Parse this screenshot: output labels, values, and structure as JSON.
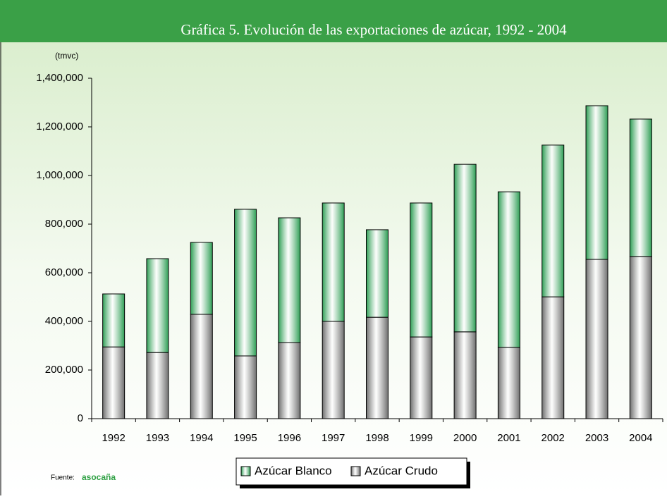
{
  "chart_data": {
    "type": "stacked_bar",
    "title": "Gráfica 5. Evolución de las exportaciones de azúcar, 1992 - 2004",
    "y_label": "(tmvc)",
    "source_label": "Fuente:",
    "source": "asocaña",
    "categories": [
      "1992",
      "1993",
      "1994",
      "1995",
      "1996",
      "1997",
      "1998",
      "1999",
      "2000",
      "2001",
      "2002",
      "2003",
      "2004"
    ],
    "series": [
      {
        "name": "Azúcar Blanco",
        "color": "#2e9e55",
        "values": [
          218000,
          386000,
          296000,
          603000,
          513000,
          487000,
          360000,
          551000,
          689000,
          640000,
          624000,
          632000,
          565000
        ]
      },
      {
        "name": "Azúcar Crudo",
        "color": "#6e6e6e",
        "values": [
          295000,
          272000,
          429000,
          258000,
          313000,
          400000,
          417000,
          336000,
          357000,
          293000,
          501000,
          655000,
          667000
        ]
      }
    ],
    "ylim": [
      0,
      1400000
    ],
    "yticks": [
      0,
      {
        "value": 200000,
        "label": "200,000"
      },
      {
        "value": 400000,
        "label": "400,000"
      },
      {
        "value": 600000,
        "label": "600,000"
      },
      {
        "value": 800000,
        "label": "800,000"
      },
      {
        "value": 1000000,
        "label": "1,000,000"
      },
      {
        "value": 1200000,
        "label": "1,200,000"
      },
      {
        "value": 1400000,
        "label": "1,400,000"
      }
    ]
  }
}
